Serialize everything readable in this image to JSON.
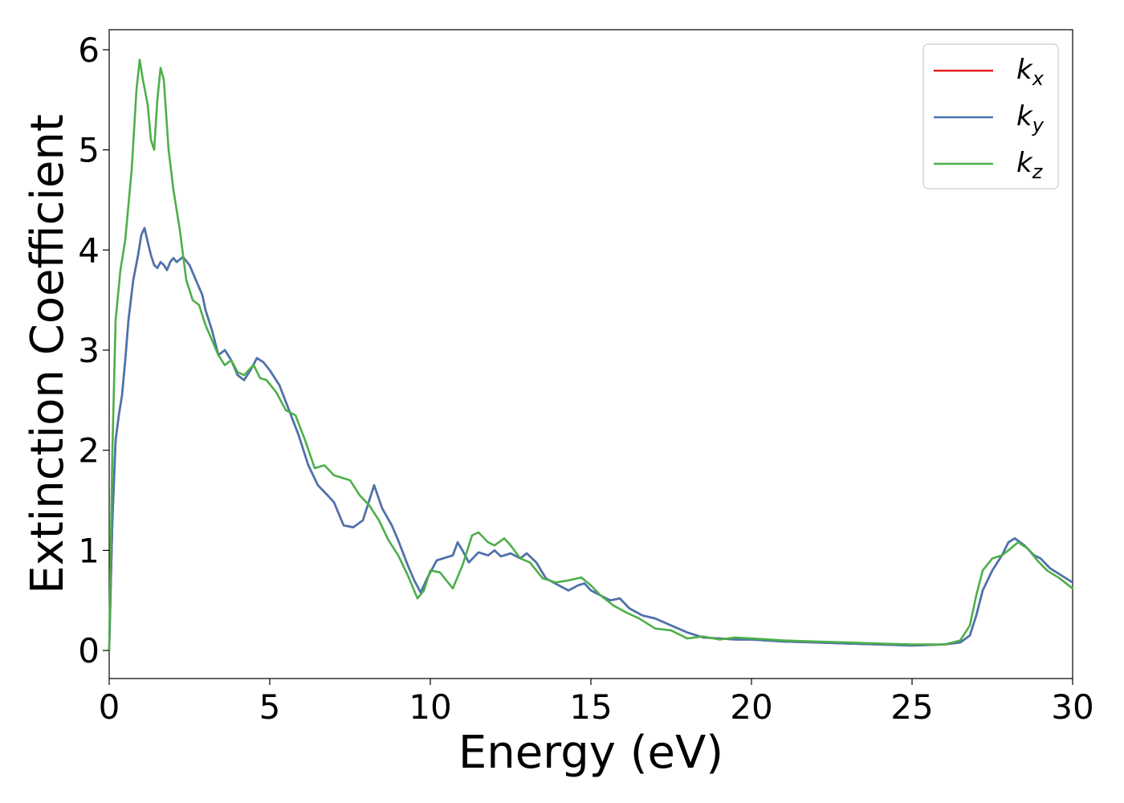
{
  "chart_data": {
    "type": "line",
    "title": "",
    "xlabel": "Energy (eV)",
    "ylabel": "Extinction Coefficient",
    "xlim": [
      0,
      30
    ],
    "ylim": [
      -0.28,
      6.2
    ],
    "xticks": [
      0,
      5,
      10,
      15,
      20,
      25,
      30
    ],
    "yticks": [
      0,
      1,
      2,
      3,
      4,
      5,
      6
    ],
    "grid": false,
    "legend_position": "top-right",
    "series": [
      {
        "name": "k",
        "subscript": "x",
        "color": "#e41a1c",
        "points": [
          [
            0,
            0
          ],
          [
            0.1,
            1.3
          ],
          [
            0.2,
            2.1
          ],
          [
            0.3,
            2.35
          ],
          [
            0.4,
            2.55
          ],
          [
            0.5,
            2.9
          ],
          [
            0.6,
            3.3
          ],
          [
            0.75,
            3.7
          ],
          [
            0.9,
            3.95
          ],
          [
            1.0,
            4.15
          ],
          [
            1.1,
            4.22
          ],
          [
            1.2,
            4.08
          ],
          [
            1.3,
            3.95
          ],
          [
            1.4,
            3.85
          ],
          [
            1.5,
            3.82
          ],
          [
            1.6,
            3.88
          ],
          [
            1.7,
            3.85
          ],
          [
            1.8,
            3.8
          ],
          [
            1.9,
            3.88
          ],
          [
            2.0,
            3.92
          ],
          [
            2.1,
            3.88
          ],
          [
            2.3,
            3.93
          ],
          [
            2.5,
            3.85
          ],
          [
            2.7,
            3.7
          ],
          [
            2.9,
            3.55
          ],
          [
            3.0,
            3.4
          ],
          [
            3.2,
            3.2
          ],
          [
            3.4,
            2.95
          ],
          [
            3.6,
            3.0
          ],
          [
            3.8,
            2.9
          ],
          [
            4.0,
            2.75
          ],
          [
            4.2,
            2.7
          ],
          [
            4.4,
            2.8
          ],
          [
            4.6,
            2.92
          ],
          [
            4.8,
            2.88
          ],
          [
            5.0,
            2.8
          ],
          [
            5.3,
            2.65
          ],
          [
            5.6,
            2.4
          ],
          [
            5.9,
            2.15
          ],
          [
            6.2,
            1.85
          ],
          [
            6.5,
            1.65
          ],
          [
            6.8,
            1.55
          ],
          [
            7.0,
            1.48
          ],
          [
            7.3,
            1.25
          ],
          [
            7.6,
            1.23
          ],
          [
            7.9,
            1.3
          ],
          [
            8.1,
            1.5
          ],
          [
            8.25,
            1.65
          ],
          [
            8.5,
            1.42
          ],
          [
            8.8,
            1.25
          ],
          [
            9.0,
            1.1
          ],
          [
            9.3,
            0.85
          ],
          [
            9.5,
            0.7
          ],
          [
            9.7,
            0.58
          ],
          [
            9.9,
            0.72
          ],
          [
            10.2,
            0.9
          ],
          [
            10.5,
            0.93
          ],
          [
            10.7,
            0.95
          ],
          [
            10.85,
            1.08
          ],
          [
            11.0,
            1.0
          ],
          [
            11.2,
            0.88
          ],
          [
            11.5,
            0.98
          ],
          [
            11.8,
            0.95
          ],
          [
            12.0,
            1.0
          ],
          [
            12.2,
            0.94
          ],
          [
            12.5,
            0.97
          ],
          [
            12.8,
            0.92
          ],
          [
            13.0,
            0.97
          ],
          [
            13.3,
            0.88
          ],
          [
            13.6,
            0.72
          ],
          [
            14.0,
            0.65
          ],
          [
            14.3,
            0.6
          ],
          [
            14.6,
            0.65
          ],
          [
            14.8,
            0.67
          ],
          [
            15.0,
            0.6
          ],
          [
            15.3,
            0.55
          ],
          [
            15.6,
            0.5
          ],
          [
            15.9,
            0.52
          ],
          [
            16.2,
            0.42
          ],
          [
            16.6,
            0.35
          ],
          [
            17.0,
            0.32
          ],
          [
            17.5,
            0.25
          ],
          [
            18.0,
            0.18
          ],
          [
            18.5,
            0.13
          ],
          [
            19.0,
            0.12
          ],
          [
            19.5,
            0.11
          ],
          [
            20.0,
            0.11
          ],
          [
            21.0,
            0.09
          ],
          [
            22.0,
            0.08
          ],
          [
            23.0,
            0.07
          ],
          [
            24.0,
            0.06
          ],
          [
            25.0,
            0.05
          ],
          [
            26.0,
            0.06
          ],
          [
            26.5,
            0.08
          ],
          [
            26.8,
            0.15
          ],
          [
            27.0,
            0.35
          ],
          [
            27.2,
            0.6
          ],
          [
            27.5,
            0.8
          ],
          [
            27.8,
            0.95
          ],
          [
            28.0,
            1.08
          ],
          [
            28.2,
            1.12
          ],
          [
            28.5,
            1.05
          ],
          [
            28.8,
            0.95
          ],
          [
            29.0,
            0.92
          ],
          [
            29.3,
            0.82
          ],
          [
            29.6,
            0.76
          ],
          [
            30.0,
            0.68
          ]
        ]
      },
      {
        "name": "k",
        "subscript": "y",
        "color": "#4675b0",
        "points": [
          [
            0,
            0
          ],
          [
            0.1,
            1.3
          ],
          [
            0.2,
            2.1
          ],
          [
            0.3,
            2.35
          ],
          [
            0.4,
            2.55
          ],
          [
            0.5,
            2.9
          ],
          [
            0.6,
            3.3
          ],
          [
            0.75,
            3.7
          ],
          [
            0.9,
            3.95
          ],
          [
            1.0,
            4.15
          ],
          [
            1.1,
            4.22
          ],
          [
            1.2,
            4.08
          ],
          [
            1.3,
            3.95
          ],
          [
            1.4,
            3.85
          ],
          [
            1.5,
            3.82
          ],
          [
            1.6,
            3.88
          ],
          [
            1.7,
            3.85
          ],
          [
            1.8,
            3.8
          ],
          [
            1.9,
            3.88
          ],
          [
            2.0,
            3.92
          ],
          [
            2.1,
            3.88
          ],
          [
            2.3,
            3.93
          ],
          [
            2.5,
            3.85
          ],
          [
            2.7,
            3.7
          ],
          [
            2.9,
            3.55
          ],
          [
            3.0,
            3.4
          ],
          [
            3.2,
            3.2
          ],
          [
            3.4,
            2.95
          ],
          [
            3.6,
            3.0
          ],
          [
            3.8,
            2.9
          ],
          [
            4.0,
            2.75
          ],
          [
            4.2,
            2.7
          ],
          [
            4.4,
            2.8
          ],
          [
            4.6,
            2.92
          ],
          [
            4.8,
            2.88
          ],
          [
            5.0,
            2.8
          ],
          [
            5.3,
            2.65
          ],
          [
            5.6,
            2.4
          ],
          [
            5.9,
            2.15
          ],
          [
            6.2,
            1.85
          ],
          [
            6.5,
            1.65
          ],
          [
            6.8,
            1.55
          ],
          [
            7.0,
            1.48
          ],
          [
            7.3,
            1.25
          ],
          [
            7.6,
            1.23
          ],
          [
            7.9,
            1.3
          ],
          [
            8.1,
            1.5
          ],
          [
            8.25,
            1.65
          ],
          [
            8.5,
            1.42
          ],
          [
            8.8,
            1.25
          ],
          [
            9.0,
            1.1
          ],
          [
            9.3,
            0.85
          ],
          [
            9.5,
            0.7
          ],
          [
            9.7,
            0.58
          ],
          [
            9.9,
            0.72
          ],
          [
            10.2,
            0.9
          ],
          [
            10.5,
            0.93
          ],
          [
            10.7,
            0.95
          ],
          [
            10.85,
            1.08
          ],
          [
            11.0,
            1.0
          ],
          [
            11.2,
            0.88
          ],
          [
            11.5,
            0.98
          ],
          [
            11.8,
            0.95
          ],
          [
            12.0,
            1.0
          ],
          [
            12.2,
            0.94
          ],
          [
            12.5,
            0.97
          ],
          [
            12.8,
            0.92
          ],
          [
            13.0,
            0.97
          ],
          [
            13.3,
            0.88
          ],
          [
            13.6,
            0.72
          ],
          [
            14.0,
            0.65
          ],
          [
            14.3,
            0.6
          ],
          [
            14.6,
            0.65
          ],
          [
            14.8,
            0.67
          ],
          [
            15.0,
            0.6
          ],
          [
            15.3,
            0.55
          ],
          [
            15.6,
            0.5
          ],
          [
            15.9,
            0.52
          ],
          [
            16.2,
            0.42
          ],
          [
            16.6,
            0.35
          ],
          [
            17.0,
            0.32
          ],
          [
            17.5,
            0.25
          ],
          [
            18.0,
            0.18
          ],
          [
            18.5,
            0.13
          ],
          [
            19.0,
            0.12
          ],
          [
            19.5,
            0.11
          ],
          [
            20.0,
            0.11
          ],
          [
            21.0,
            0.09
          ],
          [
            22.0,
            0.08
          ],
          [
            23.0,
            0.07
          ],
          [
            24.0,
            0.06
          ],
          [
            25.0,
            0.05
          ],
          [
            26.0,
            0.06
          ],
          [
            26.5,
            0.08
          ],
          [
            26.8,
            0.15
          ],
          [
            27.0,
            0.35
          ],
          [
            27.2,
            0.6
          ],
          [
            27.5,
            0.8
          ],
          [
            27.8,
            0.95
          ],
          [
            28.0,
            1.08
          ],
          [
            28.2,
            1.12
          ],
          [
            28.5,
            1.05
          ],
          [
            28.8,
            0.95
          ],
          [
            29.0,
            0.92
          ],
          [
            29.3,
            0.82
          ],
          [
            29.6,
            0.76
          ],
          [
            30.0,
            0.68
          ]
        ]
      },
      {
        "name": "k",
        "subscript": "z",
        "color": "#4daf4a",
        "points": [
          [
            0,
            0
          ],
          [
            0.1,
            2.0
          ],
          [
            0.2,
            3.3
          ],
          [
            0.35,
            3.8
          ],
          [
            0.5,
            4.1
          ],
          [
            0.7,
            4.8
          ],
          [
            0.85,
            5.6
          ],
          [
            0.95,
            5.9
          ],
          [
            1.05,
            5.7
          ],
          [
            1.2,
            5.45
          ],
          [
            1.3,
            5.1
          ],
          [
            1.4,
            5.0
          ],
          [
            1.5,
            5.5
          ],
          [
            1.6,
            5.82
          ],
          [
            1.7,
            5.7
          ],
          [
            1.85,
            5.0
          ],
          [
            2.0,
            4.6
          ],
          [
            2.2,
            4.2
          ],
          [
            2.4,
            3.7
          ],
          [
            2.6,
            3.5
          ],
          [
            2.8,
            3.45
          ],
          [
            3.0,
            3.25
          ],
          [
            3.2,
            3.1
          ],
          [
            3.4,
            2.95
          ],
          [
            3.6,
            2.85
          ],
          [
            3.8,
            2.9
          ],
          [
            4.0,
            2.78
          ],
          [
            4.2,
            2.75
          ],
          [
            4.4,
            2.82
          ],
          [
            4.5,
            2.85
          ],
          [
            4.7,
            2.72
          ],
          [
            4.9,
            2.7
          ],
          [
            5.2,
            2.58
          ],
          [
            5.5,
            2.4
          ],
          [
            5.8,
            2.35
          ],
          [
            6.1,
            2.1
          ],
          [
            6.4,
            1.82
          ],
          [
            6.7,
            1.85
          ],
          [
            7.0,
            1.75
          ],
          [
            7.3,
            1.72
          ],
          [
            7.5,
            1.7
          ],
          [
            7.8,
            1.55
          ],
          [
            8.1,
            1.45
          ],
          [
            8.4,
            1.3
          ],
          [
            8.7,
            1.1
          ],
          [
            9.0,
            0.95
          ],
          [
            9.3,
            0.75
          ],
          [
            9.6,
            0.52
          ],
          [
            9.8,
            0.6
          ],
          [
            10.0,
            0.8
          ],
          [
            10.3,
            0.78
          ],
          [
            10.5,
            0.7
          ],
          [
            10.7,
            0.62
          ],
          [
            11.0,
            0.85
          ],
          [
            11.3,
            1.15
          ],
          [
            11.5,
            1.18
          ],
          [
            11.8,
            1.08
          ],
          [
            12.0,
            1.05
          ],
          [
            12.3,
            1.12
          ],
          [
            12.5,
            1.05
          ],
          [
            12.8,
            0.92
          ],
          [
            13.1,
            0.88
          ],
          [
            13.5,
            0.72
          ],
          [
            13.9,
            0.68
          ],
          [
            14.3,
            0.7
          ],
          [
            14.7,
            0.73
          ],
          [
            15.0,
            0.65
          ],
          [
            15.3,
            0.55
          ],
          [
            15.7,
            0.45
          ],
          [
            16.1,
            0.38
          ],
          [
            16.5,
            0.32
          ],
          [
            17.0,
            0.22
          ],
          [
            17.5,
            0.2
          ],
          [
            18.0,
            0.12
          ],
          [
            18.5,
            0.14
          ],
          [
            19.0,
            0.11
          ],
          [
            19.5,
            0.13
          ],
          [
            20.0,
            0.12
          ],
          [
            21.0,
            0.1
          ],
          [
            22.0,
            0.09
          ],
          [
            23.0,
            0.08
          ],
          [
            24.0,
            0.07
          ],
          [
            25.0,
            0.06
          ],
          [
            26.0,
            0.06
          ],
          [
            26.5,
            0.1
          ],
          [
            26.8,
            0.25
          ],
          [
            27.0,
            0.55
          ],
          [
            27.2,
            0.8
          ],
          [
            27.5,
            0.92
          ],
          [
            27.8,
            0.95
          ],
          [
            28.0,
            1.0
          ],
          [
            28.3,
            1.08
          ],
          [
            28.6,
            1.02
          ],
          [
            28.9,
            0.9
          ],
          [
            29.2,
            0.8
          ],
          [
            29.6,
            0.72
          ],
          [
            30.0,
            0.62
          ]
        ]
      }
    ]
  }
}
